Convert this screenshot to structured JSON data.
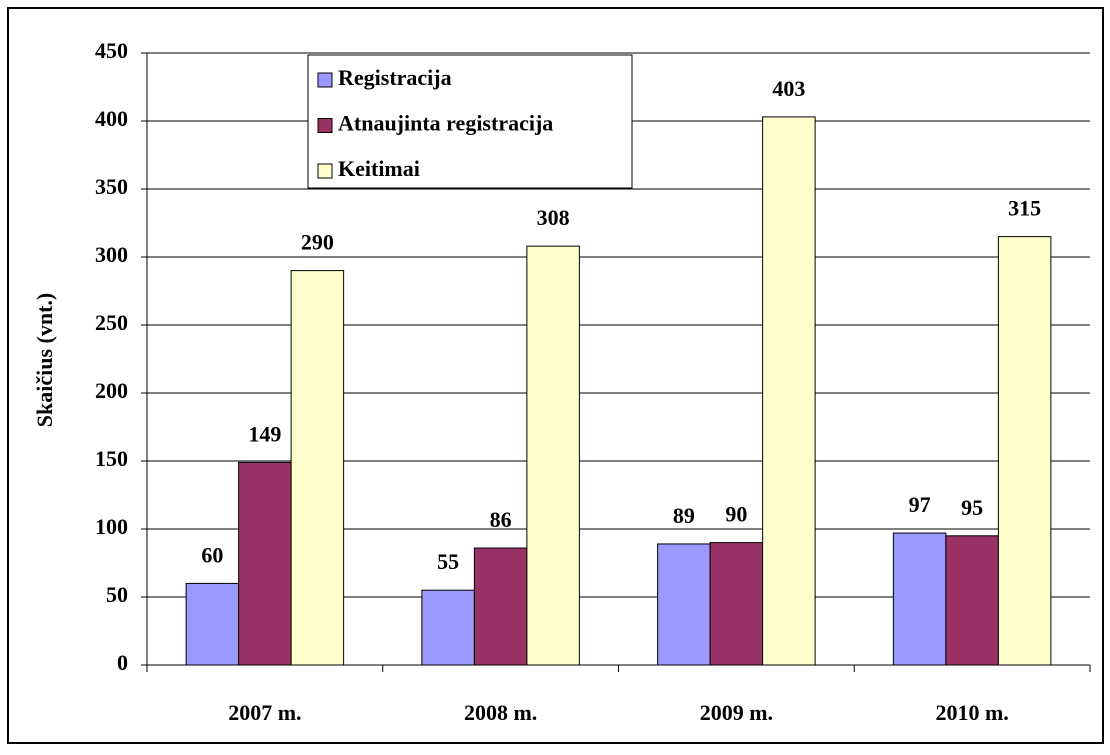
{
  "chart_data": {
    "type": "bar",
    "categories": [
      "2007 m.",
      "2008 m.",
      "2009 m.",
      "2010 m."
    ],
    "series": [
      {
        "name": "Registracija",
        "color": "#9999ff",
        "values": [
          60,
          55,
          89,
          97
        ]
      },
      {
        "name": "Atnaujinta registracija",
        "color": "#993366",
        "values": [
          149,
          86,
          90,
          95
        ]
      },
      {
        "name": "Keitimai",
        "color": "#ffffcc",
        "values": [
          290,
          308,
          403,
          315
        ]
      }
    ],
    "ylabel": "Skaičius (vnt.)",
    "ylim": [
      0,
      450
    ],
    "yticks": [
      0,
      50,
      100,
      150,
      200,
      250,
      300,
      350,
      400,
      450
    ],
    "grid": true,
    "legend": "top-left"
  }
}
